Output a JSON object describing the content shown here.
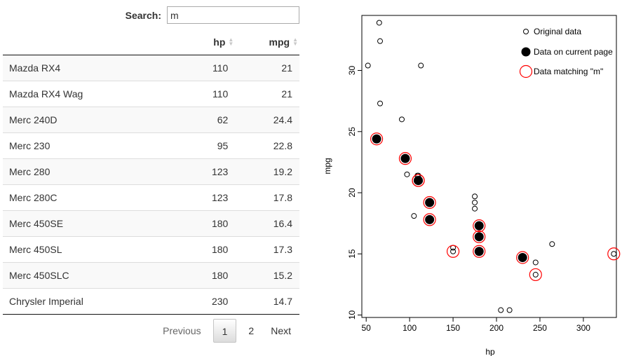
{
  "search": {
    "label": "Search:",
    "value": "m"
  },
  "table": {
    "headers": {
      "name": "",
      "hp": "hp",
      "mpg": "mpg"
    },
    "rows": [
      {
        "name": "Mazda RX4",
        "hp": "110",
        "mpg": "21"
      },
      {
        "name": "Mazda RX4 Wag",
        "hp": "110",
        "mpg": "21"
      },
      {
        "name": "Merc 240D",
        "hp": "62",
        "mpg": "24.4"
      },
      {
        "name": "Merc 230",
        "hp": "95",
        "mpg": "22.8"
      },
      {
        "name": "Merc 280",
        "hp": "123",
        "mpg": "19.2"
      },
      {
        "name": "Merc 280C",
        "hp": "123",
        "mpg": "17.8"
      },
      {
        "name": "Merc 450SE",
        "hp": "180",
        "mpg": "16.4"
      },
      {
        "name": "Merc 450SL",
        "hp": "180",
        "mpg": "17.3"
      },
      {
        "name": "Merc 450SLC",
        "hp": "180",
        "mpg": "15.2"
      },
      {
        "name": "Chrysler Imperial",
        "hp": "230",
        "mpg": "14.7"
      }
    ]
  },
  "pagination": {
    "previous": "Previous",
    "pages": [
      "1",
      "2"
    ],
    "current": "1",
    "next": "Next"
  },
  "chart_data": {
    "type": "scatter",
    "xlabel": "hp",
    "ylabel": "mpg",
    "xlim": [
      45,
      338
    ],
    "ylim": [
      9.8,
      34.5
    ],
    "xticks": [
      50,
      100,
      150,
      200,
      250,
      300
    ],
    "yticks": [
      10,
      15,
      20,
      25,
      30
    ],
    "legend": {
      "placement": "top-right",
      "entries": [
        "Original data",
        "Data on current page",
        "Data matching \"m\""
      ]
    },
    "series": [
      {
        "name": "Original data",
        "points": [
          [
            110,
            21.0
          ],
          [
            110,
            21.0
          ],
          [
            93,
            22.8
          ],
          [
            110,
            21.4
          ],
          [
            175,
            18.7
          ],
          [
            105,
            18.1
          ],
          [
            245,
            14.3
          ],
          [
            62,
            24.4
          ],
          [
            95,
            22.8
          ],
          [
            123,
            19.2
          ],
          [
            123,
            17.8
          ],
          [
            180,
            16.4
          ],
          [
            180,
            17.3
          ],
          [
            180,
            15.2
          ],
          [
            205,
            10.4
          ],
          [
            215,
            10.4
          ],
          [
            230,
            14.7
          ],
          [
            66,
            32.4
          ],
          [
            52,
            30.4
          ],
          [
            65,
            33.9
          ],
          [
            97,
            21.5
          ],
          [
            150,
            15.5
          ],
          [
            150,
            15.2
          ],
          [
            245,
            13.3
          ],
          [
            175,
            19.2
          ],
          [
            66,
            27.3
          ],
          [
            91,
            26.0
          ],
          [
            113,
            30.4
          ],
          [
            264,
            15.8
          ],
          [
            175,
            19.7
          ],
          [
            335,
            15.0
          ],
          [
            109,
            21.4
          ]
        ]
      },
      {
        "name": "Data on current page",
        "points": [
          [
            110,
            21.0
          ],
          [
            110,
            21.0
          ],
          [
            62,
            24.4
          ],
          [
            95,
            22.8
          ],
          [
            123,
            19.2
          ],
          [
            123,
            17.8
          ],
          [
            180,
            16.4
          ],
          [
            180,
            17.3
          ],
          [
            180,
            15.2
          ],
          [
            230,
            14.7
          ]
        ]
      },
      {
        "name": "Data matching \"m\"",
        "points": [
          [
            110,
            21.0
          ],
          [
            110,
            21.0
          ],
          [
            62,
            24.4
          ],
          [
            95,
            22.8
          ],
          [
            123,
            19.2
          ],
          [
            123,
            17.8
          ],
          [
            180,
            16.4
          ],
          [
            180,
            17.3
          ],
          [
            180,
            15.2
          ],
          [
            230,
            14.7
          ],
          [
            150,
            15.2
          ],
          [
            245,
            13.3
          ],
          [
            335,
            15.0
          ]
        ]
      }
    ],
    "colors": {
      "points": "#000000",
      "highlight": "#ff0000"
    }
  }
}
